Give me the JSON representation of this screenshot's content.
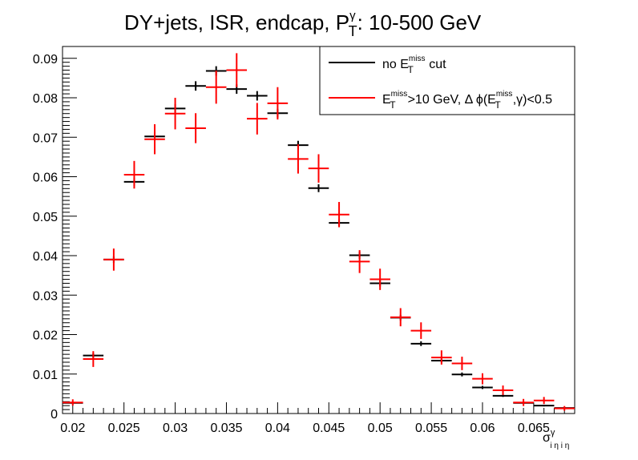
{
  "colors": {
    "series_no_cut": "#000000",
    "series_met_cut": "#ff0000"
  },
  "chart_data": {
    "type": "scatter",
    "title": {
      "main": "DY+jets, ISR,  endcap,  P",
      "sup": "γ",
      "sub": "T",
      "tail": ": 10-500 GeV"
    },
    "xlabel": {
      "main": "σ",
      "sup": "γ",
      "sub": "i η i η"
    },
    "ylabel": "",
    "xlim": [
      0.019,
      0.069
    ],
    "ylim": [
      0,
      0.093
    ],
    "x_ticks": [
      "0.02",
      "0.025",
      "0.03",
      "0.035",
      "0.04",
      "0.045",
      "0.05",
      "0.055",
      "0.06",
      "0.065"
    ],
    "y_ticks": [
      "0",
      "0.01",
      "0.02",
      "0.03",
      "0.04",
      "0.05",
      "0.06",
      "0.07",
      "0.08",
      "0.09"
    ],
    "grid": false,
    "legend_position": "top-right",
    "bin_width": 0.002,
    "legend": [
      {
        "name_main": "no E",
        "name_sup": "miss",
        "name_sub": "T",
        "name_tail": " cut"
      },
      {
        "name_main": "E",
        "name_sup": "miss",
        "name_sub": "T",
        "name_tail": ">10 GeV, Δ ϕ(E",
        "name_sup2": "miss",
        "name_sub2": "T",
        "name_tail2": ",γ)<0.5"
      }
    ],
    "series": [
      {
        "x": [
          0.02,
          0.022,
          0.024,
          0.026,
          0.028,
          0.03,
          0.032,
          0.034,
          0.036,
          0.038,
          0.04,
          0.042,
          0.044,
          0.046,
          0.048,
          0.05,
          0.052,
          0.054,
          0.056,
          0.058,
          0.06,
          0.062,
          0.064,
          0.066,
          0.068
        ],
        "y": [
          0.0027,
          0.0147,
          0.039,
          0.0587,
          0.0702,
          0.0773,
          0.083,
          0.0868,
          0.0822,
          0.0805,
          0.0761,
          0.068,
          0.0571,
          0.0483,
          0.0401,
          0.033,
          0.0243,
          0.0177,
          0.0134,
          0.0099,
          0.0066,
          0.0045,
          0.0027,
          0.002,
          0.0014
        ],
        "err": [
          0.0003,
          0.0006,
          0.0008,
          0.001,
          0.0011,
          0.0011,
          0.0012,
          0.0012,
          0.0012,
          0.0012,
          0.0011,
          0.0011,
          0.001,
          0.0009,
          0.0009,
          0.0008,
          0.0007,
          0.0006,
          0.0005,
          0.0005,
          0.0004,
          0.0003,
          0.0003,
          0.0002,
          0.0002
        ]
      },
      {
        "x": [
          0.02,
          0.022,
          0.024,
          0.026,
          0.028,
          0.03,
          0.032,
          0.034,
          0.036,
          0.038,
          0.04,
          0.042,
          0.044,
          0.046,
          0.048,
          0.05,
          0.052,
          0.054,
          0.056,
          0.058,
          0.06,
          0.062,
          0.064,
          0.066,
          0.068
        ],
        "y": [
          0.0028,
          0.0138,
          0.039,
          0.0605,
          0.0695,
          0.076,
          0.0723,
          0.0827,
          0.087,
          0.0747,
          0.0786,
          0.0645,
          0.0621,
          0.0504,
          0.0385,
          0.034,
          0.0244,
          0.021,
          0.0142,
          0.0127,
          0.0088,
          0.0059,
          0.0028,
          0.0033,
          0.0013
        ],
        "err": [
          0.0008,
          0.002,
          0.0028,
          0.0035,
          0.0038,
          0.004,
          0.0038,
          0.0042,
          0.0043,
          0.004,
          0.0041,
          0.0037,
          0.0036,
          0.0032,
          0.0029,
          0.0027,
          0.0023,
          0.0021,
          0.0018,
          0.0017,
          0.0014,
          0.0012,
          0.0009,
          0.0009,
          0.0006
        ]
      }
    ]
  }
}
